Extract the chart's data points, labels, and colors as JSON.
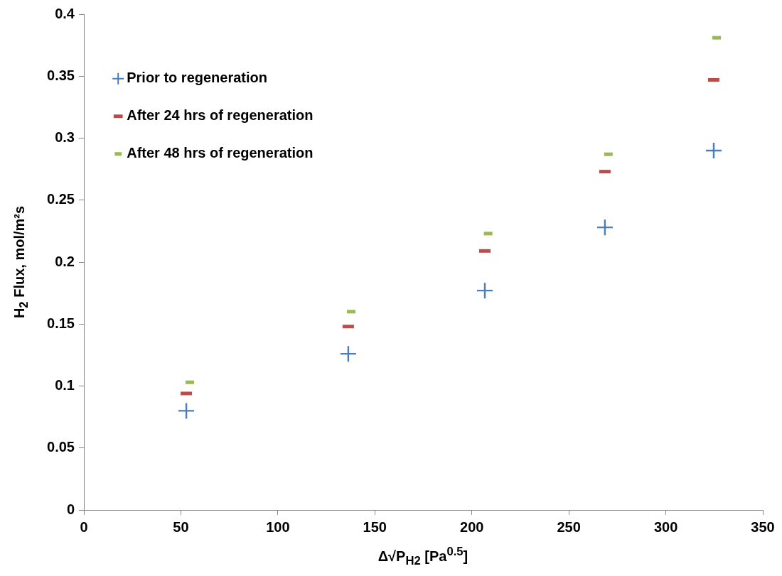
{
  "chart_data": {
    "type": "scatter",
    "xlabel": "Δ√P$_{H2}$ [Pa$^{0.5}$]",
    "ylabel": "H$_{2}$ Flux, mol/m²s",
    "xlim": [
      0,
      350
    ],
    "xticks": [
      0,
      50,
      100,
      150,
      200,
      250,
      300,
      350
    ],
    "ylim": [
      0,
      0.4
    ],
    "yticks": [
      0,
      0.05,
      0.1,
      0.15,
      0.2,
      0.25,
      0.3,
      0.35,
      0.4
    ],
    "grid": false,
    "legend": "top left",
    "series": [
      {
        "name": "Prior to regeneration",
        "color": "#4a7ebb",
        "marker": "cross",
        "x": [
          52.8,
          136.3,
          206.7,
          268.6,
          324.7
        ],
        "values": [
          0.08,
          0.126,
          0.177,
          0.228,
          0.29
        ]
      },
      {
        "name": "After 24 hrs of regeneration",
        "color": "#be4b48",
        "x": [
          52.8,
          136.3,
          206.7,
          268.6,
          324.7
        ],
        "values": [
          0.094,
          0.148,
          0.209,
          0.273,
          0.347
        ]
      },
      {
        "name": "After 48 hrs of regeneration",
        "color": "#98b954",
        "x": [
          54.6,
          137.8,
          208.4,
          270.4,
          326.2
        ],
        "values": [
          0.103,
          0.16,
          0.223,
          0.287,
          0.381
        ]
      }
    ]
  }
}
